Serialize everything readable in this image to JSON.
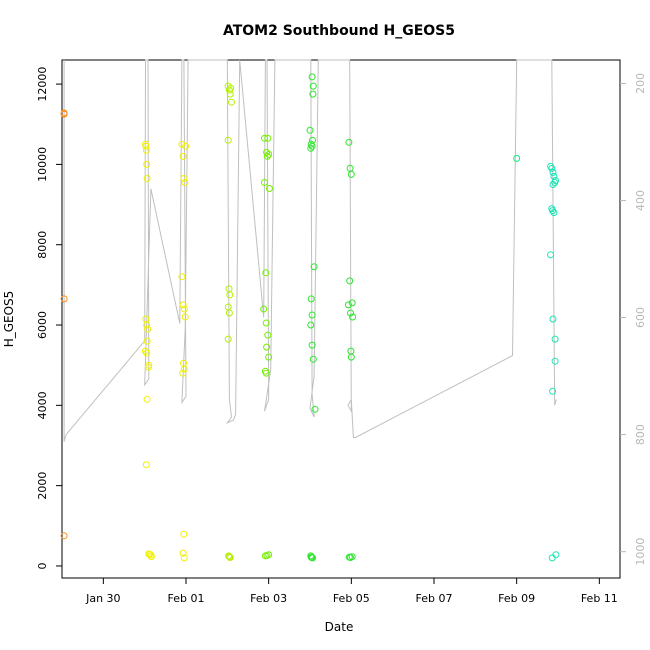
{
  "chart_data": {
    "type": "scatter",
    "title": "ATOM2 Southbound H_GEOS5",
    "xlabel": "Date",
    "ylabel": "H_GEOS5",
    "x_ticks": [
      "Jan 30",
      "Feb 01",
      "Feb 03",
      "Feb 05",
      "Feb 07",
      "Feb 09",
      "Feb 11"
    ],
    "xlim_days": [
      28.0,
      41.5
    ],
    "ylim": [
      -300,
      12600
    ],
    "y_ticks": [
      0,
      2000,
      4000,
      6000,
      8000,
      10000,
      12000
    ],
    "y2_ticks": [
      200,
      400,
      600,
      800,
      1000
    ],
    "y2_range": [
      1045,
      160
    ],
    "y2_reversed": true,
    "grid": false,
    "legend": "none",
    "colors": {
      "orange": "#ff8c1a",
      "yellow": "#f0f000",
      "yellowgreen": "#b6f000",
      "lime": "#72f000",
      "green": "#2ee62e",
      "mint": "#1ae680",
      "aqua": "#1ae6b4",
      "pressure_line": "#bfbfbf"
    },
    "series": [
      {
        "color": "orange",
        "x": [
          28.05,
          28.05,
          28.05,
          28.05,
          28.05
        ],
        "y": [
          11280,
          11250,
          6650,
          750,
          11260
        ]
      },
      {
        "color": "yellow",
        "x": [
          30.02,
          30.04,
          30.05,
          30.06,
          30.03,
          30.05,
          30.07,
          30.02,
          30.05,
          30.1,
          30.09,
          30.06,
          30.04,
          30.1,
          30.15,
          30.16,
          30.03,
          30.06,
          30.12
        ],
        "y": [
          10500,
          10350,
          10000,
          9650,
          6150,
          6000,
          5900,
          5350,
          5300,
          5000,
          4950,
          4150,
          2520,
          300,
          270,
          230,
          10450,
          5600,
          290
        ]
      },
      {
        "color": "yellow",
        "x": [
          30.9,
          30.93,
          30.95,
          30.97,
          30.9,
          30.93,
          30.96,
          30.98,
          30.94,
          30.96,
          30.92,
          30.95,
          30.93,
          30.96,
          30.99
        ],
        "y": [
          10500,
          10200,
          9650,
          9550,
          7200,
          6500,
          6400,
          6200,
          5050,
          4900,
          4800,
          790,
          320,
          200,
          10450
        ]
      },
      {
        "color": "yellowgreen",
        "x": [
          32.02,
          32.05,
          32.07,
          32.1,
          32.02,
          32.04,
          32.06,
          32.02,
          32.05,
          32.02,
          32.05,
          32.07,
          32.03,
          32.06,
          32.08
        ],
        "y": [
          11950,
          11850,
          11750,
          11550,
          10600,
          6900,
          6750,
          6450,
          6300,
          5650,
          230,
          210,
          250,
          220,
          11900
        ]
      },
      {
        "color": "lime",
        "x": [
          32.9,
          32.95,
          33.0,
          32.97,
          33.02,
          32.9,
          32.93,
          32.88,
          32.94,
          32.98,
          33.0,
          32.95,
          32.92,
          32.94,
          33.0,
          32.96,
          32.92,
          32.98
        ],
        "y": [
          10650,
          10300,
          10250,
          10200,
          9400,
          9550,
          7300,
          6400,
          6050,
          5750,
          5200,
          5450,
          4850,
          4800,
          280,
          260,
          250,
          10650
        ]
      },
      {
        "color": "green",
        "x": [
          34.0,
          34.03,
          34.05,
          34.02,
          34.06,
          34.03,
          34.05,
          34.02,
          34.05,
          34.08,
          34.1,
          34.12,
          34.03,
          34.04,
          34.06,
          34.02,
          34.05,
          34.08
        ],
        "y": [
          10850,
          10500,
          10450,
          10400,
          10600,
          6650,
          6250,
          6000,
          5500,
          5150,
          7450,
          3900,
          220,
          210,
          200,
          250,
          12180,
          11950
        ]
      },
      {
        "color": "green",
        "x": [
          34.07,
          34.94,
          34.97,
          35.0,
          34.96,
          35.02,
          34.93,
          34.98,
          35.03,
          34.99,
          35.0,
          34.95,
          34.98,
          35.02
        ],
        "y": [
          11750,
          10550,
          9900,
          9750,
          7100,
          6550,
          6500,
          6300,
          6200,
          5350,
          5200,
          220,
          210,
          230
        ]
      },
      {
        "color": "mint",
        "x": [
          39.0
        ],
        "y": [
          10150
        ]
      },
      {
        "color": "aqua",
        "x": [
          39.82,
          39.85,
          39.88,
          39.9,
          39.92,
          39.88,
          39.85,
          39.87,
          39.9,
          39.82,
          39.88,
          39.93,
          39.87,
          39.93,
          39.95,
          39.86,
          39.94
        ],
        "y": [
          9950,
          9900,
          9800,
          9700,
          9550,
          9500,
          8900,
          8850,
          8800,
          7750,
          6150,
          5650,
          4350,
          5100,
          280,
          200,
          9600
        ]
      }
    ],
    "pressure_line_note": "secondary-axis trace (pressure, hPa), drawn in light grey",
    "pressure_line": {
      "x": [
        28.05,
        28.05,
        28.1,
        30.0,
        30.02,
        30.08,
        30.1,
        30.0,
        30.15,
        30.85,
        30.9,
        30.95,
        31.0,
        30.9,
        30.98,
        31.05,
        31.95,
        32.0,
        32.05,
        32.1,
        32.0,
        32.15,
        32.2,
        32.3,
        32.88,
        32.92,
        32.96,
        33.0,
        32.9,
        33.05,
        33.1,
        33.15,
        33.95,
        34.02,
        34.05,
        34.1,
        34.0,
        34.1,
        34.2,
        34.9,
        34.96,
        35.0,
        34.92,
        35.0,
        35.05,
        35.1,
        38.9,
        39.0,
        39.8,
        39.85,
        39.92,
        39.96
      ],
      "y": [
        160,
        812,
        800,
        640,
        160,
        160,
        705,
        715,
        380,
        610,
        160,
        160,
        735,
        745,
        620,
        160,
        160,
        160,
        740,
        770,
        780,
        775,
        765,
        160,
        600,
        160,
        160,
        740,
        760,
        690,
        420,
        160,
        160,
        160,
        730,
        770,
        755,
        700,
        160,
        160,
        160,
        760,
        750,
        740,
        805,
        805,
        665,
        160,
        160,
        160,
        750,
        740
      ]
    }
  }
}
